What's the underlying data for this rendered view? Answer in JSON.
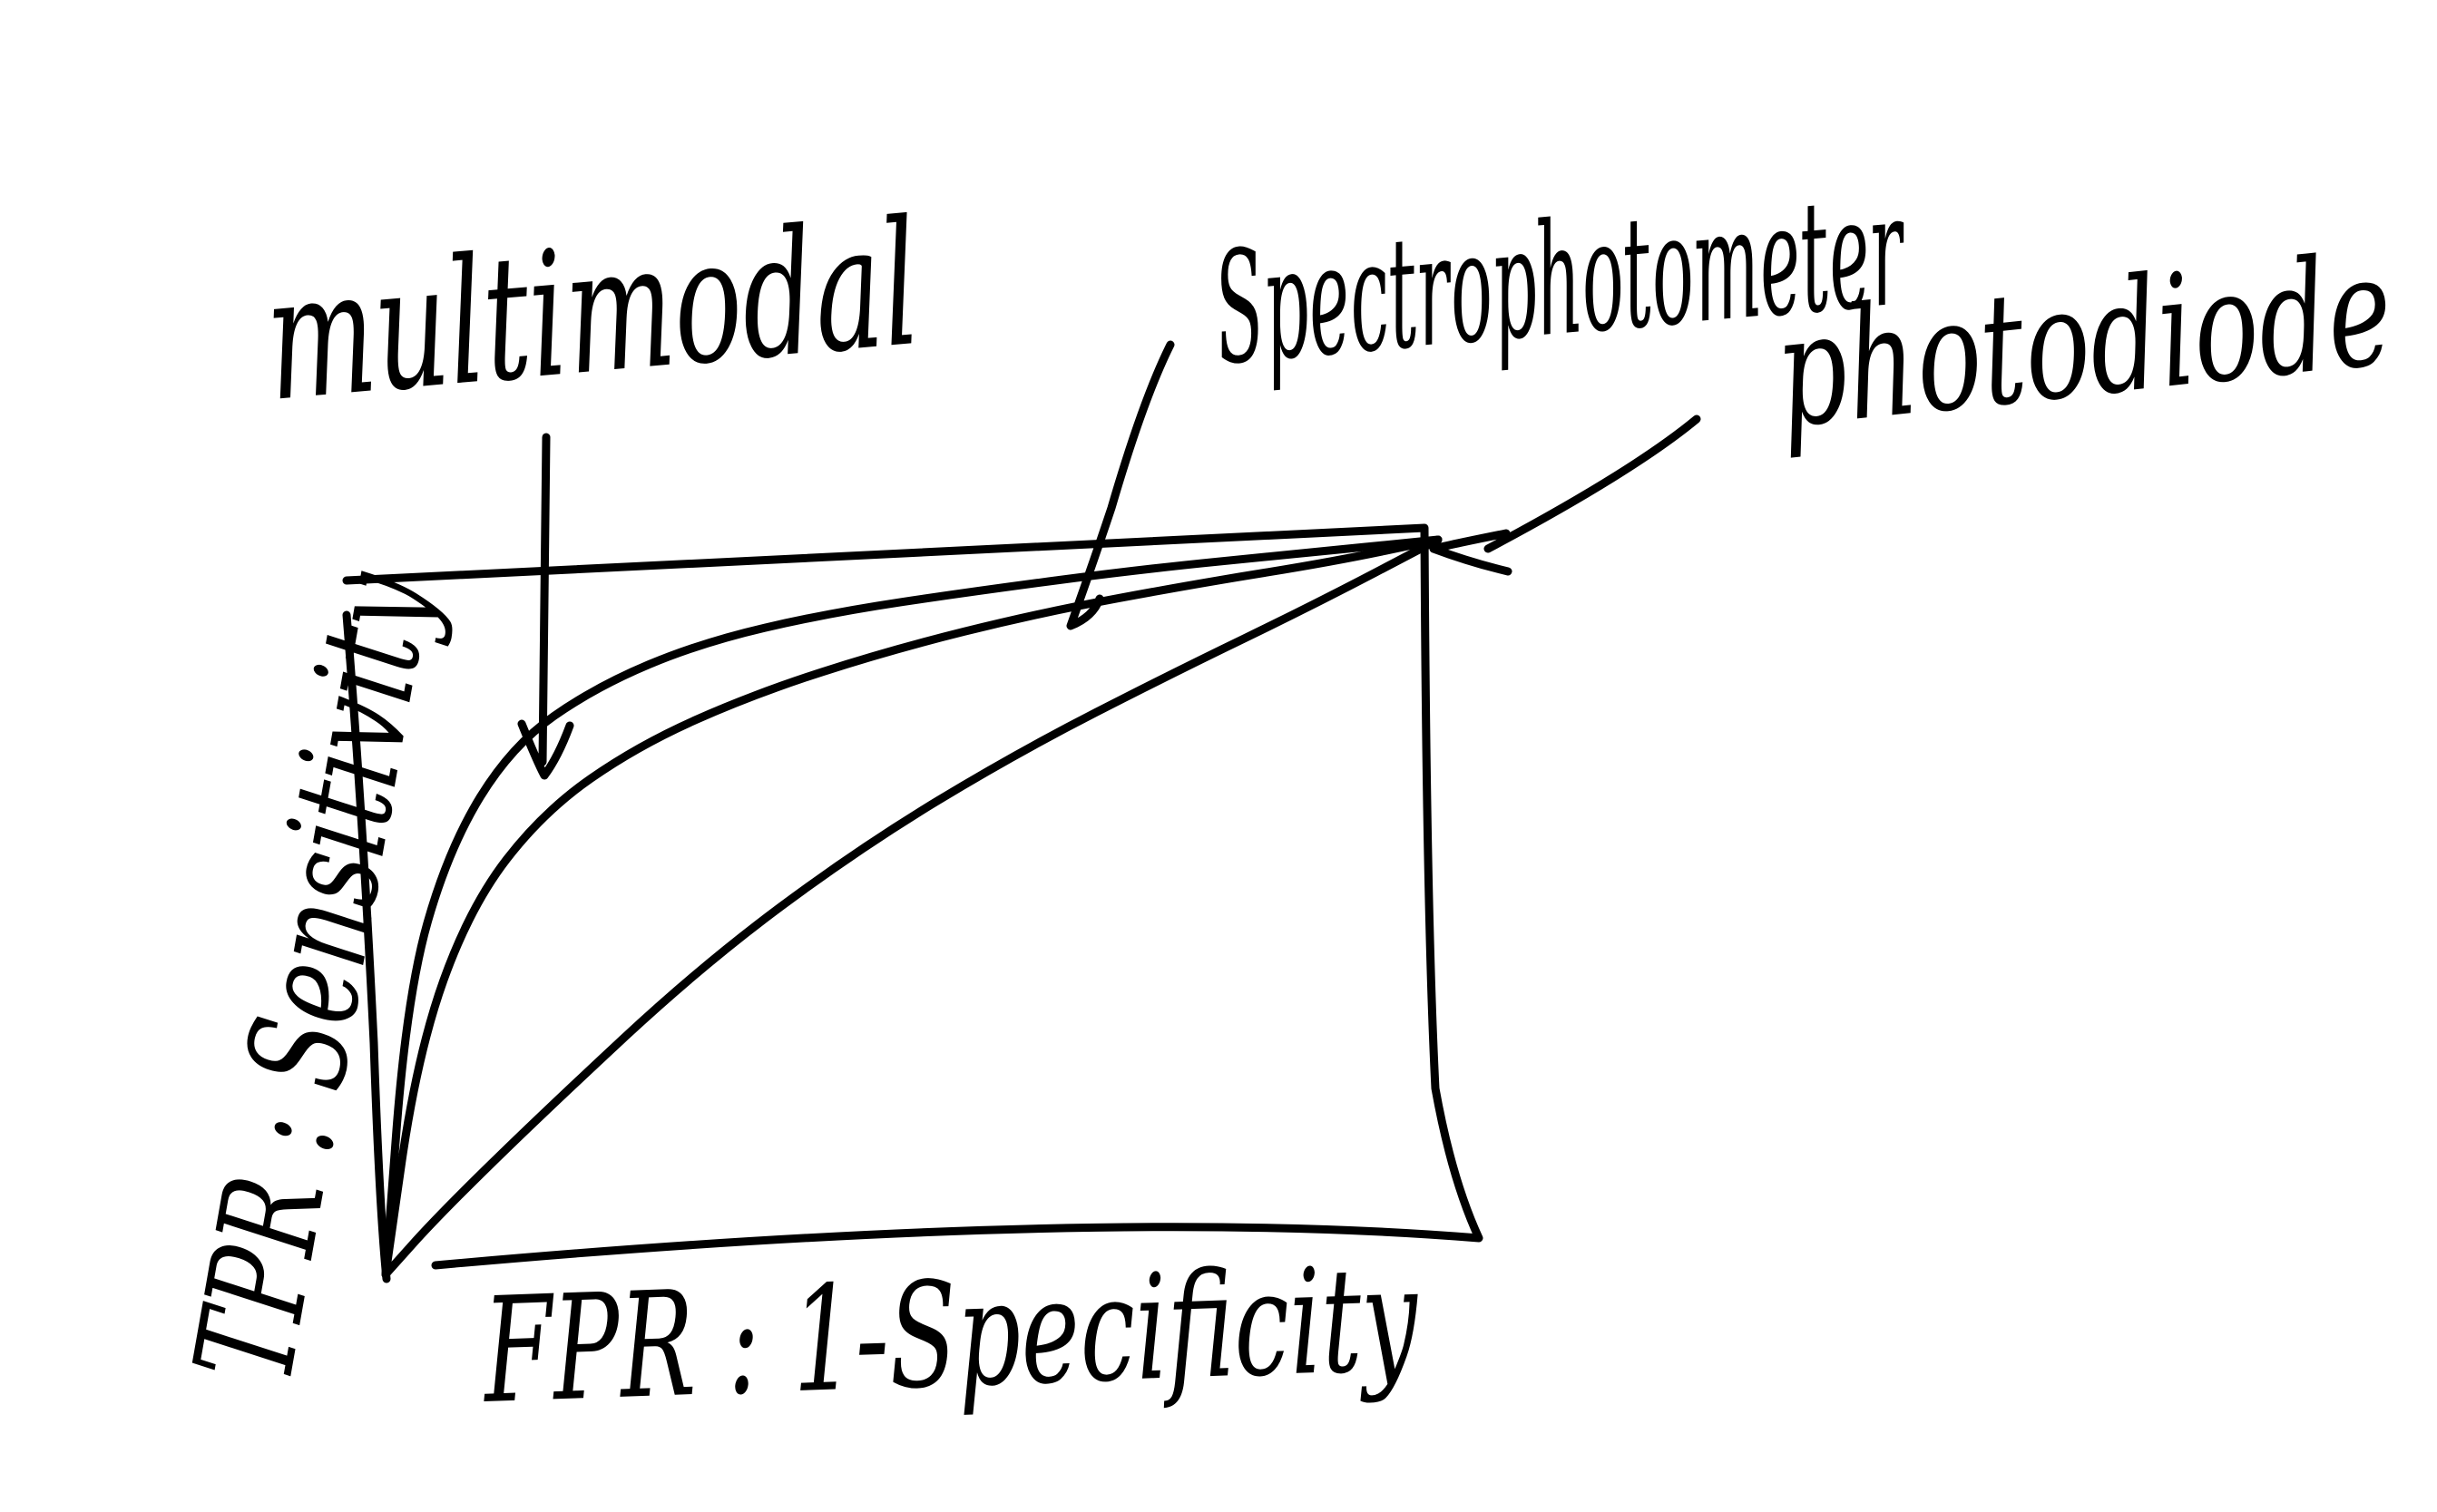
{
  "chart_data": {
    "type": "line",
    "title": "",
    "xlabel": "FPR : 1-Specificity",
    "ylabel": "TPR : Sensitivity",
    "xlim": [
      0,
      1
    ],
    "ylim": [
      0,
      1
    ],
    "grid": false,
    "series": [
      {
        "name": "multimodal",
        "x": [
          0,
          0.02,
          0.06,
          0.12,
          0.2,
          0.3,
          0.42,
          0.56,
          0.72,
          0.86,
          1.0
        ],
        "y": [
          0,
          0.38,
          0.58,
          0.72,
          0.8,
          0.86,
          0.9,
          0.93,
          0.96,
          0.98,
          1.0
        ]
      },
      {
        "name": "spectrophotometer",
        "x": [
          0,
          0.03,
          0.08,
          0.15,
          0.24,
          0.35,
          0.48,
          0.62,
          0.77,
          0.9,
          1.0
        ],
        "y": [
          0,
          0.3,
          0.5,
          0.63,
          0.72,
          0.79,
          0.85,
          0.9,
          0.94,
          0.97,
          1.0
        ]
      },
      {
        "name": "photodiode",
        "x": [
          0,
          0.05,
          0.15,
          0.3,
          0.45,
          0.6,
          0.75,
          0.88,
          1.0
        ],
        "y": [
          0,
          0.08,
          0.22,
          0.42,
          0.58,
          0.71,
          0.82,
          0.91,
          1.0
        ]
      }
    ],
    "annotations": [
      "multimodal",
      "Spectrophotometer",
      "photodiode"
    ]
  }
}
